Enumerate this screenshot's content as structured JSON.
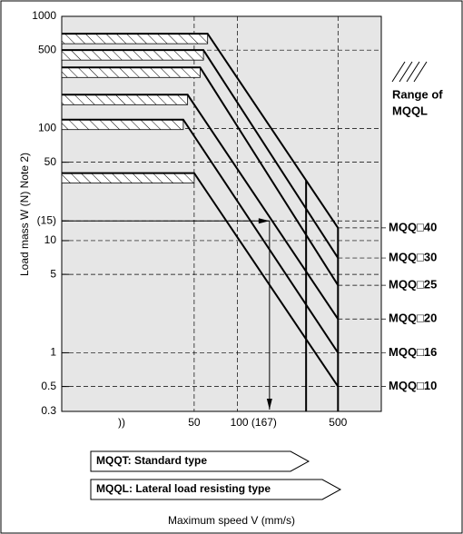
{
  "chart_data": {
    "type": "line",
    "y_label": "Load mass W (N) Note 2)",
    "x_label": "Maximum speed  V (mm/s)",
    "log_x": true,
    "log_y": true,
    "grid": true,
    "xlim": [
      6,
      1000
    ],
    "ylim": [
      0.3,
      1000
    ],
    "xticks": [
      50,
      {
        "value": 100,
        "label": "100 (167)"
      },
      500
    ],
    "yticks": [
      1000,
      500,
      100,
      50,
      {
        "value": 15,
        "label": "(15)"
      },
      10,
      5,
      1,
      0.5,
      0.3
    ],
    "series": [
      {
        "name": "MQQ□40",
        "color": "#000000",
        "x": [
          6,
          62,
          500
        ],
        "values": [
          700,
          700,
          13
        ]
      },
      {
        "name": "MQQ□30",
        "color": "#000000",
        "x": [
          6,
          58,
          500
        ],
        "values": [
          500,
          500,
          7
        ]
      },
      {
        "name": "MQQ□25",
        "color": "#000000",
        "x": [
          6,
          55,
          500
        ],
        "values": [
          350,
          350,
          4
        ]
      },
      {
        "name": "MQQ□20",
        "color": "#000000",
        "x": [
          6,
          45,
          500
        ],
        "values": [
          200,
          200,
          2
        ]
      },
      {
        "name": "MQQ□16",
        "color": "#000000",
        "x": [
          6,
          42,
          500
        ],
        "values": [
          120,
          120,
          1
        ]
      },
      {
        "name": "MQQ□10",
        "color": "#000000",
        "x": [
          6,
          50,
          500
        ],
        "values": [
          40,
          40,
          0.5
        ]
      }
    ],
    "limit_speeds": [
      300,
      500
    ],
    "example": {
      "load": 15,
      "speed": 167
    },
    "range_label": [
      "Range of",
      "MQQL"
    ],
    "types": [
      "MQQT: Standard type",
      "MQQL: Lateral load resisting type"
    ]
  }
}
